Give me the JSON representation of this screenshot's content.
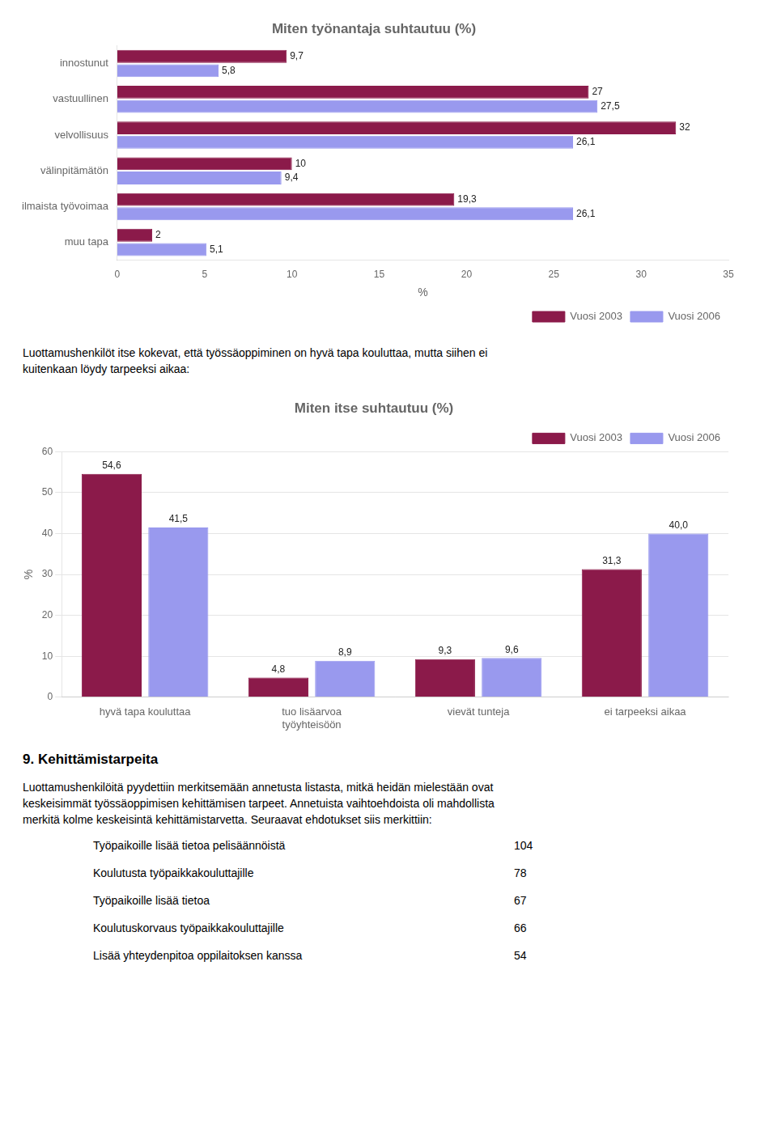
{
  "chart_data": [
    {
      "type": "bar",
      "orientation": "horizontal",
      "title": "Miten työnantaja suhtautuu (%)",
      "categories": [
        "innostunut",
        "vastuullinen",
        "velvollisuus",
        "välinpitämätön",
        "ilmaista työvoimaa",
        "muu tapa"
      ],
      "series": [
        {
          "name": "Vuosi 2003",
          "color": "#8B1A4A",
          "values": [
            9.7,
            27.0,
            32.0,
            10.0,
            19.3,
            2.0
          ],
          "value_labels": [
            "9,7",
            "27",
            "32",
            "10",
            "19,3",
            "2"
          ]
        },
        {
          "name": "Vuosi 2006",
          "color": "#9999EE",
          "values": [
            5.8,
            27.5,
            26.1,
            9.4,
            26.1,
            5.1
          ],
          "value_labels": [
            "5,8",
            "27,5",
            "26,1",
            "9,4",
            "26,1",
            "5,1"
          ]
        }
      ],
      "xlabel": "%",
      "xlim": [
        0,
        35
      ],
      "xticks": [
        0,
        5,
        10,
        15,
        20,
        25,
        30,
        35
      ],
      "grid": false,
      "legend": "lower right",
      "data_labels": true
    },
    {
      "type": "bar",
      "title": "Miten itse suhtautuu (%)",
      "categories": [
        "hyvä tapa kouluttaa",
        "tuo lisäarvoa\ntyöyhteisöön",
        "vievät tunteja",
        "ei tarpeeksi aikaa"
      ],
      "series": [
        {
          "name": "Vuosi 2003",
          "color": "#8B1A4A",
          "values": [
            54.6,
            4.8,
            9.3,
            31.3
          ],
          "value_labels": [
            "54,6",
            "4,8",
            "9,3",
            "31,3"
          ]
        },
        {
          "name": "Vuosi 2006",
          "color": "#9999EE",
          "values": [
            41.5,
            8.9,
            9.6,
            40.0
          ],
          "value_labels": [
            "41,5",
            "8,9",
            "9,6",
            "40,0"
          ]
        }
      ],
      "ylabel": "%",
      "ylim": [
        0,
        60
      ],
      "yticks": [
        0,
        10,
        20,
        30,
        40,
        50,
        60
      ],
      "grid": true,
      "legend": "upper right",
      "data_labels": true
    }
  ],
  "text_between": "Luottamushenkilöt itse kokevat, että työssäoppiminen on hyvä tapa kouluttaa, mutta siihen ei\nkuitenkaan löydy tarpeeksi aikaa:",
  "section_title": "9. Kehittämistarpeita",
  "section_text": "Luottamushenkilöitä pyydettiin merkitsemään annetusta listasta, mitkä heidän mielestään ovat\nkeskeisimmät työssäoppimisen kehittämisen tarpeet. Annetuista vaihtoehdoista oli mahdollista\nmerkitä kolme keskeisintä kehittämistarvetta. Seuraavat ehdotukset siis merkittiin:",
  "list_items": [
    [
      "Työpaikoille lisää tietoa pelisäännöistä",
      "104"
    ],
    [
      "Koulutusta työpaikkakouluttajille",
      "78"
    ],
    [
      "Työpaikoille lisää tietoa",
      "67"
    ],
    [
      "Koulutuskorvaus työpaikkakouluttajille",
      "66"
    ],
    [
      "Lisää yhteydenpitoa oppilaitoksen kanssa",
      "54"
    ]
  ]
}
